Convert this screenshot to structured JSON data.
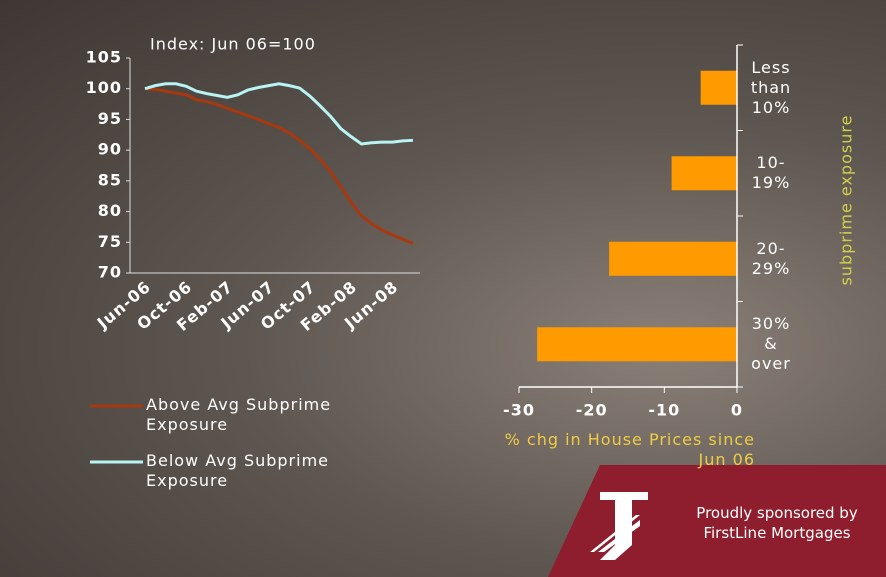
{
  "chart_data": [
    {
      "type": "line",
      "title": "Index: Jun 06=100",
      "categories": [
        "Jun-06",
        null,
        null,
        null,
        "Oct-06",
        null,
        null,
        null,
        "Feb-07",
        null,
        null,
        null,
        "Jun-07",
        null,
        null,
        null,
        "Oct-07",
        null,
        null,
        null,
        "Feb-08",
        null,
        null,
        null,
        "Jun-08",
        null,
        null
      ],
      "series": [
        {
          "name": "Above Avg Subprime Exposure",
          "color": "#a8380f",
          "values": [
            100,
            99.9,
            99.6,
            99.3,
            99.0,
            98.2,
            97.9,
            97.4,
            96.8,
            96.2,
            95.6,
            95.0,
            94.3,
            93.7,
            92.8,
            91.6,
            90.2,
            88.5,
            86.5,
            84.0,
            81.5,
            79.3,
            78.0,
            77.0,
            76.2,
            75.5,
            74.8
          ]
        },
        {
          "name": "Below Avg Subprime Exposure",
          "color": "#b8f4f4",
          "values": [
            100,
            100.5,
            100.8,
            100.8,
            100.4,
            99.6,
            99.2,
            98.9,
            98.6,
            99.0,
            99.8,
            100.2,
            100.5,
            100.8,
            100.5,
            100.1,
            98.8,
            97.2,
            95.5,
            93.5,
            92.2,
            91.0,
            91.2,
            91.3,
            91.3,
            91.5,
            91.6
          ]
        }
      ],
      "ylim": [
        70,
        105
      ],
      "yticks": [
        70,
        75,
        80,
        85,
        90,
        95,
        100,
        105
      ]
    },
    {
      "type": "hbar",
      "x_label": "% chg in House Prices since Jun 06",
      "y_label": "subprime exposure",
      "categories": [
        "Less than 10%",
        "10-19%",
        "20-29%",
        "30% & over"
      ],
      "values": [
        -5,
        -9,
        -17.6,
        -27.5
      ],
      "color": "#ff9a00",
      "xlim": [
        -30,
        0
      ],
      "xticks": [
        -30,
        -20,
        -10,
        0
      ]
    }
  ],
  "sponsor": {
    "text": "Proudly sponsored by FirstLine Mortgages"
  }
}
